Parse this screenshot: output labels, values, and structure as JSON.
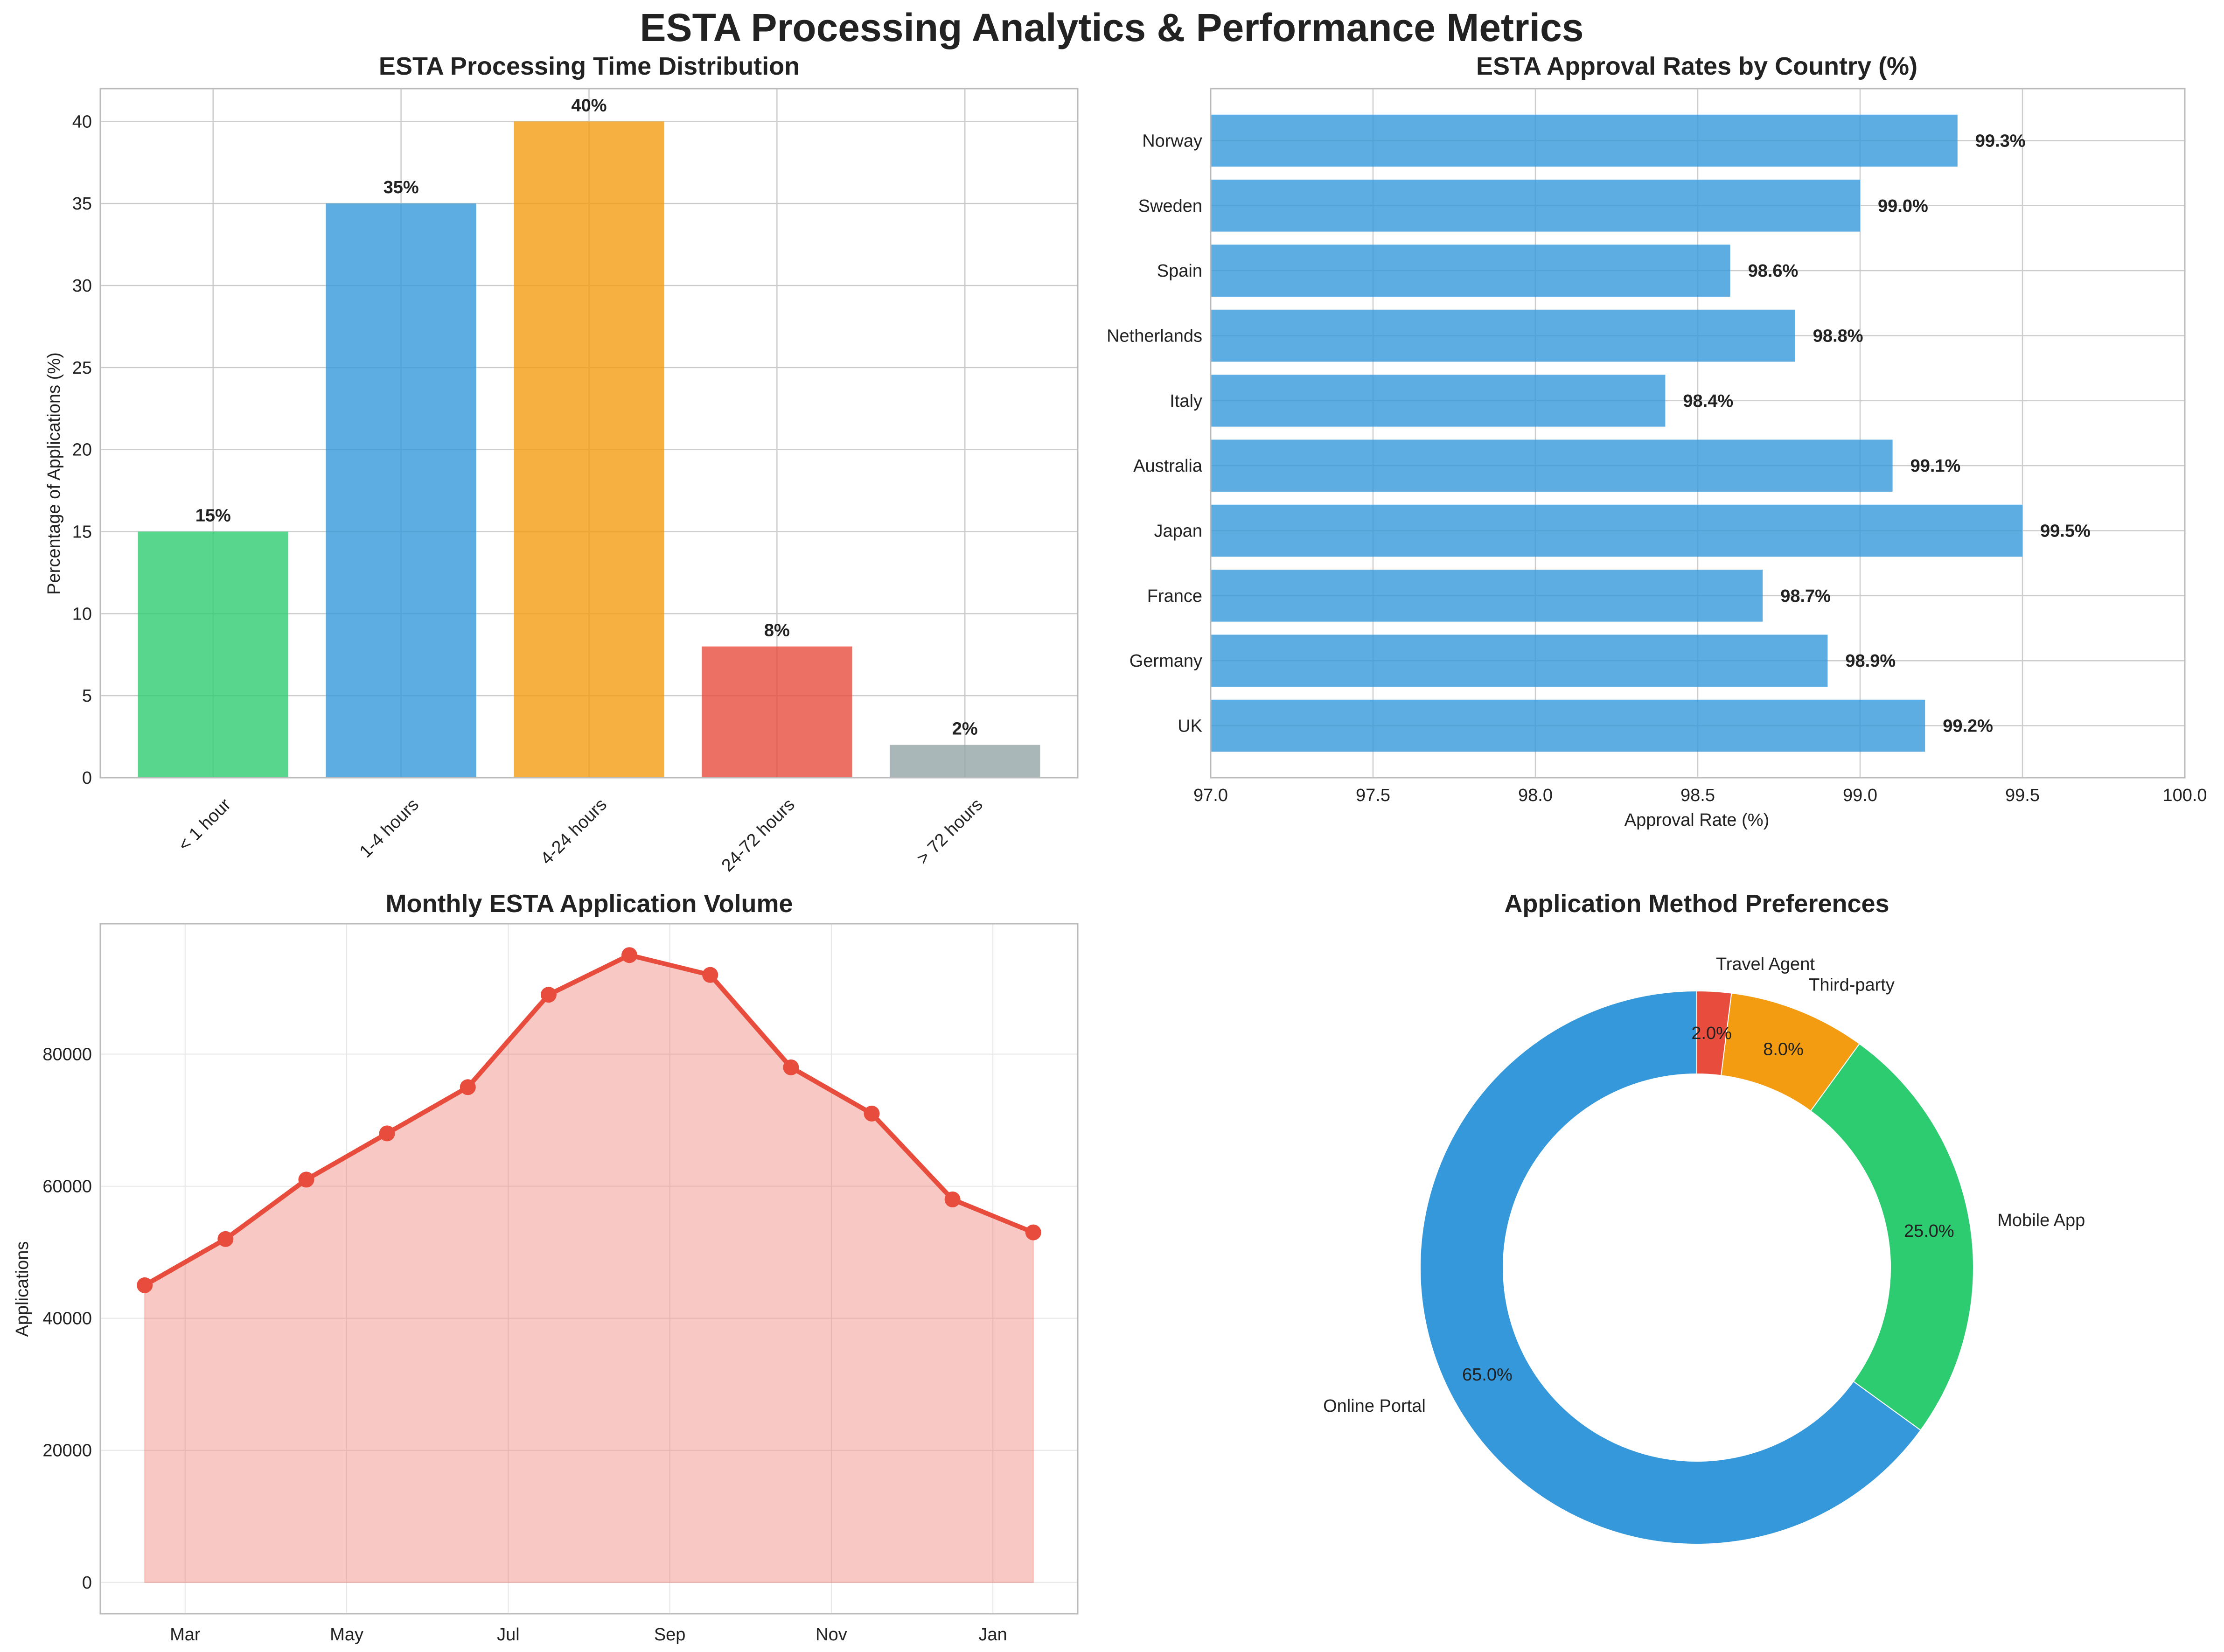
{
  "figure": {
    "title": "ESTA Processing Analytics & Performance Metrics"
  },
  "colors": {
    "green": "#2ecc71",
    "blue": "#3498db",
    "orange": "#f39c12",
    "red": "#e74c3c",
    "gray": "#95a5a6",
    "grid": "#cccccc",
    "axis": "#bbbbbb",
    "text": "#222222"
  },
  "chart_data": [
    {
      "id": "processing",
      "type": "bar",
      "title": "ESTA Processing Time Distribution",
      "categories": [
        "< 1 hour",
        "1-4 hours",
        "4-24 hours",
        "24-72 hours",
        "> 72 hours"
      ],
      "values": [
        15,
        35,
        40,
        8,
        2
      ],
      "labels": [
        "15%",
        "35%",
        "40%",
        "8%",
        "2%"
      ],
      "colors": [
        "#2ecc71",
        "#3498db",
        "#f39c12",
        "#e74c3c",
        "#95a5a6"
      ],
      "xlabel": "",
      "ylabel": "Percentage of Applications (%)",
      "ylim": [
        0,
        42
      ],
      "yticks": [
        0,
        5,
        10,
        15,
        20,
        25,
        30,
        35,
        40
      ],
      "grid": true
    },
    {
      "id": "approval",
      "type": "bar",
      "orientation": "horizontal",
      "title": "ESTA Approval Rates by Country (%)",
      "categories": [
        "UK",
        "Germany",
        "France",
        "Japan",
        "Australia",
        "Italy",
        "Netherlands",
        "Spain",
        "Sweden",
        "Norway"
      ],
      "values": [
        99.2,
        98.9,
        98.7,
        99.5,
        99.1,
        98.4,
        98.8,
        98.6,
        99.0,
        99.3
      ],
      "labels": [
        "99.2%",
        "98.9%",
        "98.7%",
        "99.5%",
        "99.1%",
        "98.4%",
        "98.8%",
        "98.6%",
        "99.0%",
        "99.3%"
      ],
      "xlabel": "Approval Rate (%)",
      "ylabel": "",
      "xlim": [
        97.0,
        100.0
      ],
      "xticks": [
        97.0,
        97.5,
        98.0,
        98.5,
        99.0,
        99.5,
        100.0
      ],
      "xtick_labels": [
        "97.0",
        "97.5",
        "98.0",
        "98.5",
        "99.0",
        "99.5",
        "100.0"
      ],
      "grid": true
    },
    {
      "id": "monthly",
      "type": "area",
      "title": "Monthly ESTA Application Volume",
      "x": [
        0,
        1,
        2,
        3,
        4,
        5,
        6,
        7,
        8,
        9,
        10,
        11
      ],
      "values": [
        45000,
        52000,
        61000,
        68000,
        75000,
        89000,
        95000,
        92000,
        78000,
        71000,
        58000,
        53000
      ],
      "xtick_positions": [
        0.5,
        2.5,
        4.5,
        6.5,
        8.5,
        10.5
      ],
      "xtick_labels": [
        "Mar",
        "May",
        "Jul",
        "Sep",
        "Nov",
        "Jan"
      ],
      "xlim": [
        -0.55,
        11.55
      ],
      "ylim": [
        -4750,
        99750
      ],
      "yticks": [
        0,
        20000,
        40000,
        60000,
        80000
      ],
      "ytick_labels": [
        "0",
        "20000",
        "40000",
        "60000",
        "80000"
      ],
      "xlabel": "",
      "ylabel": "Applications",
      "grid": true
    },
    {
      "id": "methods",
      "type": "pie",
      "donut": true,
      "title": "Application Method Preferences",
      "labels": [
        "Online Portal",
        "Mobile App",
        "Third-party",
        "Travel Agent"
      ],
      "values": [
        65,
        25,
        8,
        2
      ],
      "pct_labels": [
        "65.0%",
        "25.0%",
        "8.0%",
        "2.0%"
      ],
      "colors": [
        "#3498db",
        "#2ecc71",
        "#f39c12",
        "#e74c3c"
      ],
      "start_angle": 90
    }
  ]
}
